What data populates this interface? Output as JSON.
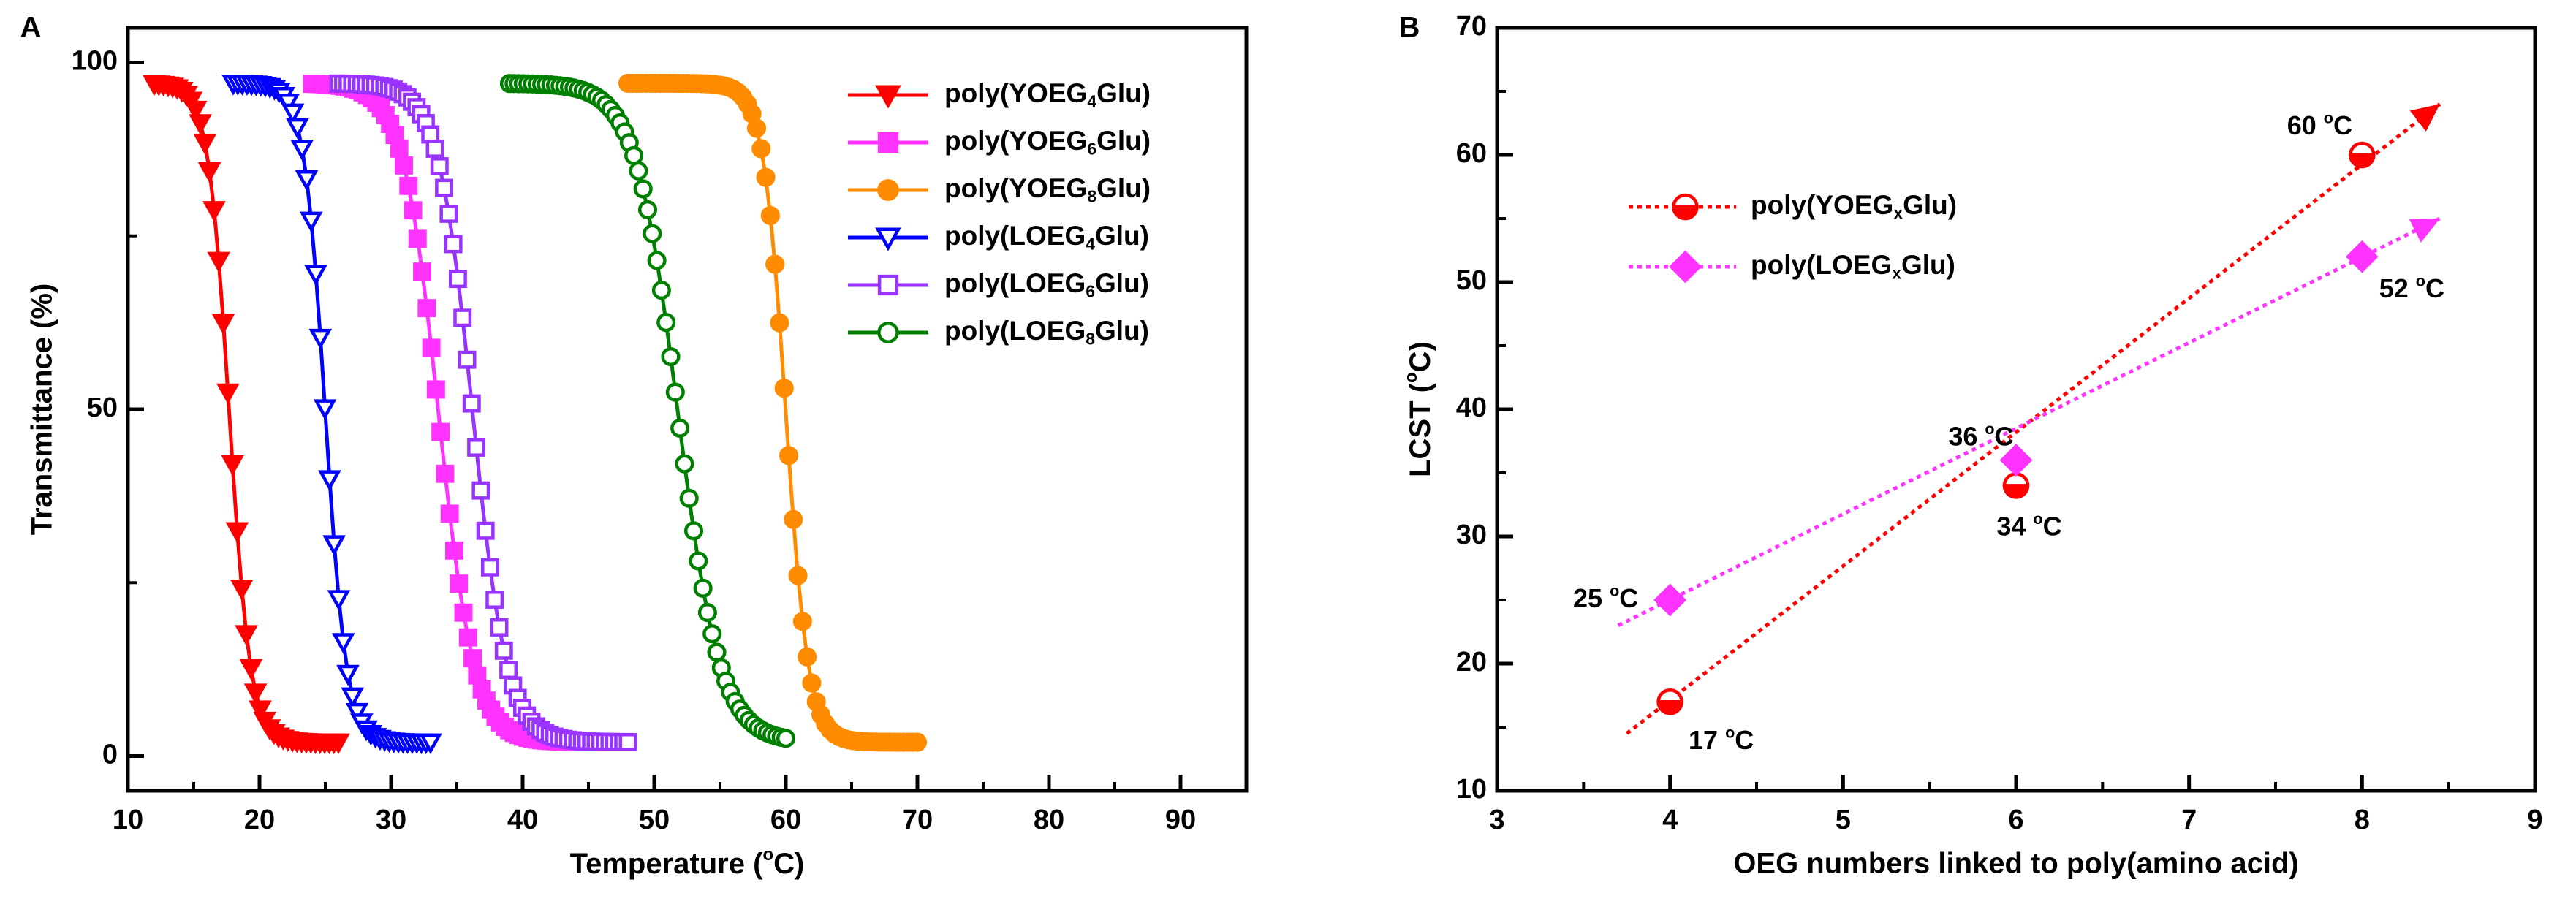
{
  "chart_data": [
    {
      "type": "line",
      "panel_label": "A",
      "xlabel": "Temperature (°C)",
      "ylabel": "Transmittance (%)",
      "xlim": [
        10,
        95
      ],
      "ylim": [
        -5,
        105
      ],
      "xticks": [
        10,
        20,
        30,
        40,
        50,
        60,
        70,
        80,
        90
      ],
      "yticks": [
        0,
        50,
        100
      ],
      "legend_position": "top-right",
      "series": [
        {
          "name": "poly(YOEG4Glu)",
          "label_main": "poly(YOEG",
          "label_sub": "4",
          "label_tail": "Glu)",
          "color": "#ff0000",
          "marker": "triangle-down-filled",
          "start": 12,
          "end": 26,
          "t50": 17.7,
          "width": 0.8
        },
        {
          "name": "poly(YOEG6Glu)",
          "label_main": "poly(YOEG",
          "label_sub": "6",
          "label_tail": "Glu)",
          "color": "#ff33ff",
          "marker": "square-filled",
          "start": 24,
          "end": 47,
          "t50": 33.6,
          "width": 1.35
        },
        {
          "name": "poly(YOEG8Glu)",
          "label_main": "poly(YOEG",
          "label_sub": "8",
          "label_tail": "Glu)",
          "color": "#ff8c00",
          "marker": "circle-filled",
          "start": 48,
          "end": 70,
          "t50": 60.0,
          "width": 0.85
        },
        {
          "name": "poly(LOEG4Glu)",
          "label_main": "poly(LOEG",
          "label_sub": "4",
          "label_tail": "Glu)",
          "color": "#0000ff",
          "marker": "triangle-down-open",
          "start": 18,
          "end": 33,
          "t50": 25.0,
          "width": 0.8
        },
        {
          "name": "poly(LOEG6Glu)",
          "label_main": "poly(LOEG",
          "label_sub": "6",
          "label_tail": "Glu)",
          "color": "#9933ff",
          "marker": "square-open",
          "start": 26,
          "end": 48,
          "t50": 36.2,
          "width": 1.3
        },
        {
          "name": "poly(LOEG8Glu)",
          "label_main": "poly(LOEG",
          "label_sub": "8",
          "label_tail": "Glu)",
          "color": "#008000",
          "marker": "circle-open",
          "start": 39,
          "end": 60,
          "t50": 51.8,
          "width": 1.6
        }
      ]
    },
    {
      "type": "scatter",
      "panel_label": "B",
      "xlabel": "OEG numbers linked to poly(amino acid)",
      "ylabel": "LCST (°C)",
      "xlim": [
        3,
        9
      ],
      "ylim": [
        10,
        70
      ],
      "xticks": [
        3,
        4,
        5,
        6,
        7,
        8,
        9
      ],
      "yticks": [
        10,
        20,
        30,
        40,
        50,
        60,
        70
      ],
      "legend_position": "top-left",
      "series": [
        {
          "name": "poly(YOEGxGlu)",
          "label_main": "poly(YOEG",
          "label_sub": "x",
          "label_tail": "Glu)",
          "color": "#ff0000",
          "marker": "circle-half",
          "x": [
            4,
            6,
            8
          ],
          "y": [
            17,
            34,
            60
          ],
          "point_labels": [
            "17 °C",
            "34 °C",
            "60 °C"
          ],
          "trend_from": [
            3.75,
            14.5
          ],
          "trend_to": [
            8.45,
            64.0
          ]
        },
        {
          "name": "poly(LOEGxGlu)",
          "label_main": "poly(LOEG",
          "label_sub": "x",
          "label_tail": "Glu)",
          "color": "#ff33ff",
          "marker": "diamond",
          "x": [
            4,
            6,
            8
          ],
          "y": [
            25,
            36,
            52
          ],
          "point_labels": [
            "25 °C",
            "36 °C",
            "52 °C"
          ],
          "trend_from": [
            3.7,
            23.0
          ],
          "trend_to": [
            8.45,
            55.0
          ]
        }
      ]
    }
  ]
}
